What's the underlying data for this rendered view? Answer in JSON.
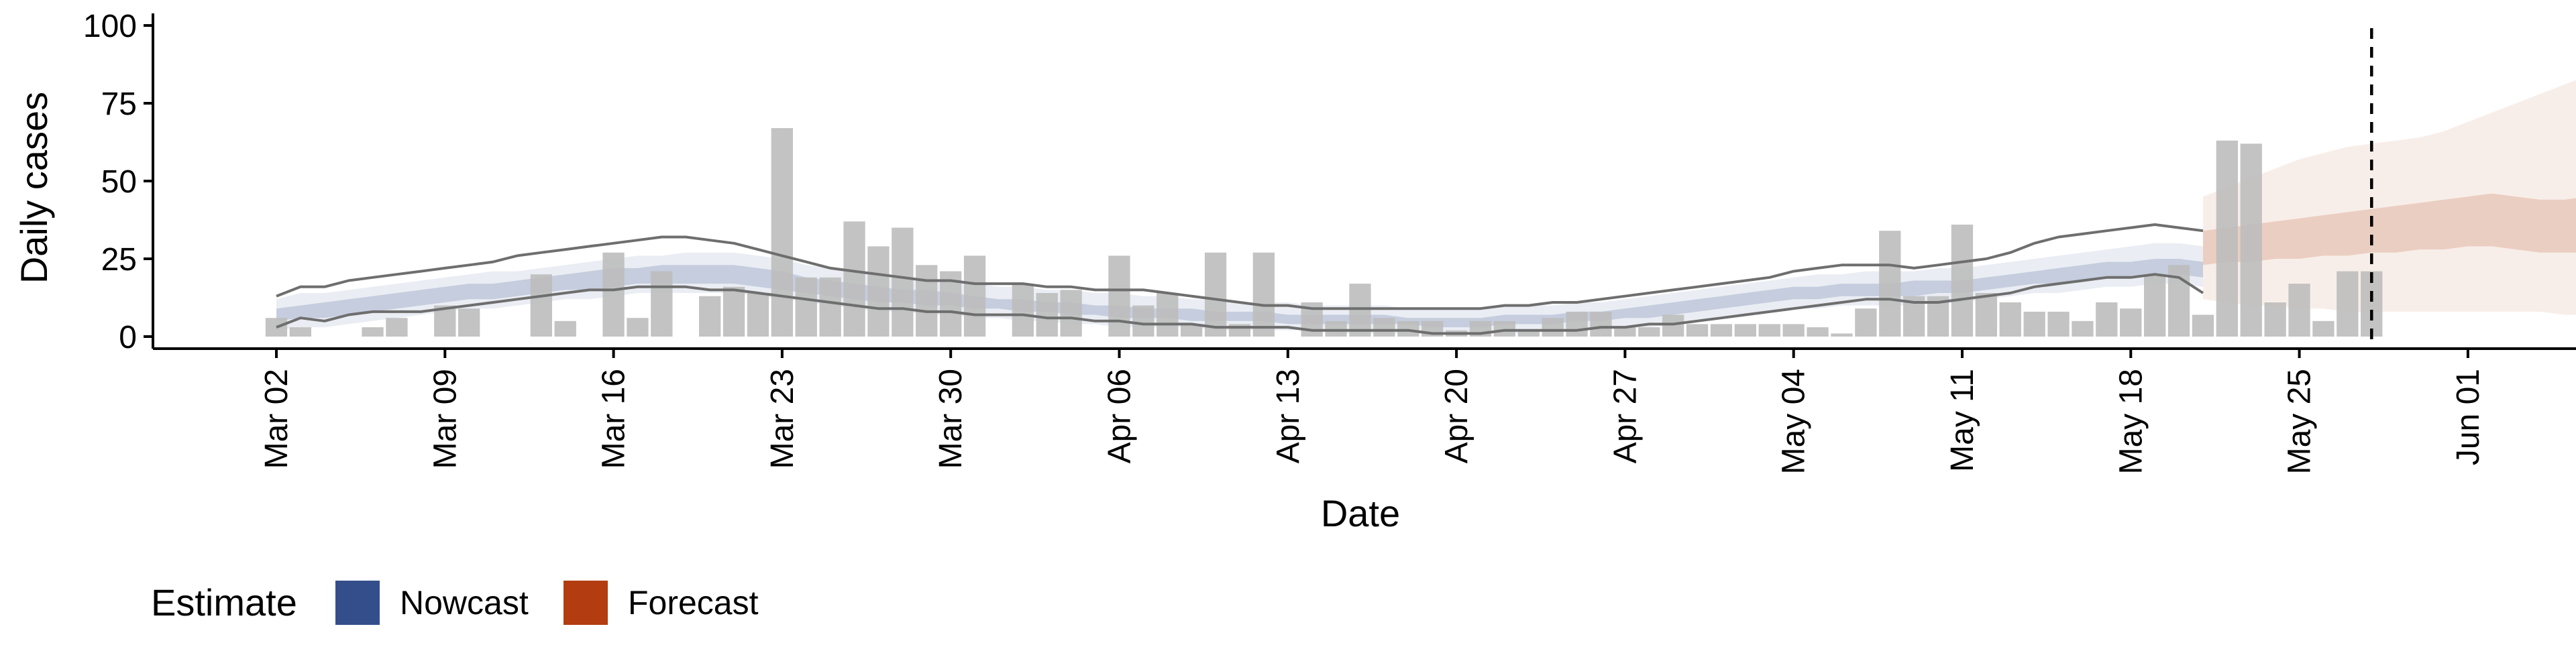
{
  "chart_data": {
    "type": "bar",
    "xlabel": "Date",
    "ylabel": "Daily cases",
    "ylim": [
      0,
      100
    ],
    "yticks": [
      0,
      25,
      50,
      75,
      100
    ],
    "xticks": [
      "Mar 02",
      "Mar 09",
      "Mar 16",
      "Mar 23",
      "Mar 30",
      "Apr 06",
      "Apr 13",
      "Apr 20",
      "Apr 27",
      "May 04",
      "May 11",
      "May 18",
      "May 25",
      "Jun 01"
    ],
    "grid": false,
    "reference_line_date": "May 28",
    "legend": {
      "position": "bottom-left",
      "title": "Estimate",
      "entries": [
        {
          "label": "Nowcast",
          "color": "#344e8c"
        },
        {
          "label": "Forecast",
          "color": "#b33d10"
        }
      ]
    },
    "colors": {
      "bars": "#bdbdbd",
      "nowcast": "#344e8c",
      "forecast": "#b33d10",
      "bound_lines": "#6e6e6e"
    },
    "dates": [
      "Mar 02",
      "Mar 03",
      "Mar 04",
      "Mar 05",
      "Mar 06",
      "Mar 07",
      "Mar 08",
      "Mar 09",
      "Mar 10",
      "Mar 11",
      "Mar 12",
      "Mar 13",
      "Mar 14",
      "Mar 15",
      "Mar 16",
      "Mar 17",
      "Mar 18",
      "Mar 19",
      "Mar 20",
      "Mar 21",
      "Mar 22",
      "Mar 23",
      "Mar 24",
      "Mar 25",
      "Mar 26",
      "Mar 27",
      "Mar 28",
      "Mar 29",
      "Mar 30",
      "Mar 31",
      "Apr 01",
      "Apr 02",
      "Apr 03",
      "Apr 04",
      "Apr 05",
      "Apr 06",
      "Apr 07",
      "Apr 08",
      "Apr 09",
      "Apr 10",
      "Apr 11",
      "Apr 12",
      "Apr 13",
      "Apr 14",
      "Apr 15",
      "Apr 16",
      "Apr 17",
      "Apr 18",
      "Apr 19",
      "Apr 20",
      "Apr 21",
      "Apr 22",
      "Apr 23",
      "Apr 24",
      "Apr 25",
      "Apr 26",
      "Apr 27",
      "Apr 28",
      "Apr 29",
      "Apr 30",
      "May 01",
      "May 02",
      "May 03",
      "May 04",
      "May 05",
      "May 06",
      "May 07",
      "May 08",
      "May 09",
      "May 10",
      "May 11",
      "May 12",
      "May 13",
      "May 14",
      "May 15",
      "May 16",
      "May 17",
      "May 18",
      "May 19",
      "May 20",
      "May 21",
      "May 22",
      "May 23",
      "May 24",
      "May 25",
      "May 26",
      "May 27",
      "May 28",
      "May 29",
      "May 30",
      "May 31",
      "Jun 01",
      "Jun 02"
    ],
    "daily_cases": [
      6,
      3,
      0,
      0,
      3,
      6,
      0,
      10,
      9,
      0,
      0,
      20,
      5,
      0,
      27,
      6,
      21,
      0,
      13,
      16,
      14,
      67,
      19,
      19,
      37,
      29,
      35,
      23,
      21,
      26,
      0,
      17,
      14,
      15,
      0,
      26,
      10,
      14,
      4,
      27,
      4,
      27,
      0,
      11,
      5,
      17,
      6,
      5,
      5,
      2,
      5,
      5,
      2,
      6,
      8,
      8,
      3,
      3,
      7,
      4,
      4,
      4,
      4,
      4,
      3,
      1,
      9,
      34,
      13,
      13,
      36,
      14,
      11,
      8,
      8,
      5,
      11,
      9,
      20,
      23,
      7,
      63,
      62,
      11,
      17,
      5,
      21,
      21
    ],
    "nowcast": {
      "start": "Mar 02",
      "outer_upper": [
        12,
        14,
        14,
        15,
        16,
        17,
        18,
        19,
        20,
        21,
        21,
        22,
        23,
        24,
        25,
        26,
        26,
        27,
        27,
        27,
        26,
        25,
        23,
        22,
        21,
        20,
        19,
        19,
        18,
        17,
        16,
        16,
        15,
        15,
        14,
        14,
        13,
        13,
        12,
        12,
        11,
        11,
        11,
        10,
        10,
        10,
        10,
        9,
        9,
        9,
        9,
        10,
        10,
        10,
        11,
        11,
        12,
        13,
        14,
        15,
        16,
        17,
        18,
        19,
        20,
        20,
        21,
        21,
        21,
        22,
        22,
        23,
        24,
        25,
        26,
        27,
        28,
        29,
        30,
        30,
        29
      ],
      "mid_upper": [
        9,
        10,
        11,
        12,
        13,
        14,
        15,
        16,
        17,
        17,
        18,
        19,
        20,
        21,
        22,
        22,
        23,
        23,
        23,
        23,
        22,
        21,
        19,
        18,
        17,
        16,
        15,
        15,
        14,
        13,
        12,
        12,
        11,
        11,
        10,
        10,
        9,
        9,
        9,
        8,
        8,
        8,
        7,
        7,
        7,
        7,
        7,
        6,
        6,
        6,
        6,
        7,
        7,
        7,
        8,
        8,
        9,
        10,
        11,
        12,
        13,
        14,
        15,
        16,
        16,
        17,
        17,
        17,
        18,
        18,
        18,
        19,
        20,
        21,
        22,
        23,
        24,
        24,
        25,
        25,
        24
      ],
      "mid_lower": [
        5,
        6,
        6,
        7,
        8,
        9,
        10,
        11,
        12,
        12,
        13,
        14,
        15,
        15,
        16,
        17,
        17,
        17,
        17,
        17,
        16,
        15,
        14,
        13,
        12,
        11,
        11,
        10,
        10,
        9,
        9,
        8,
        8,
        7,
        7,
        6,
        6,
        6,
        5,
        5,
        5,
        5,
        4,
        4,
        4,
        4,
        4,
        4,
        3,
        3,
        3,
        4,
        4,
        4,
        5,
        5,
        6,
        6,
        7,
        8,
        9,
        10,
        11,
        12,
        12,
        13,
        13,
        13,
        13,
        14,
        14,
        15,
        16,
        17,
        17,
        18,
        19,
        19,
        20,
        20,
        19
      ],
      "outer_lower": [
        2,
        3,
        3,
        4,
        5,
        6,
        7,
        8,
        9,
        9,
        10,
        11,
        12,
        12,
        13,
        14,
        14,
        14,
        14,
        14,
        13,
        12,
        11,
        10,
        9,
        8,
        8,
        7,
        7,
        6,
        6,
        5,
        5,
        4,
        4,
        3,
        3,
        3,
        3,
        2,
        2,
        2,
        2,
        2,
        1,
        1,
        1,
        1,
        1,
        1,
        1,
        1,
        1,
        2,
        2,
        2,
        3,
        3,
        4,
        5,
        6,
        7,
        8,
        9,
        9,
        10,
        10,
        10,
        10,
        11,
        11,
        12,
        13,
        14,
        14,
        15,
        16,
        16,
        17,
        17,
        16
      ]
    },
    "forecast": {
      "start": "May 21",
      "outer_upper": [
        45,
        48,
        51,
        54,
        57,
        59,
        61,
        62,
        63,
        64,
        66,
        69,
        72,
        75,
        78,
        81,
        84,
        87,
        90,
        93,
        96
      ],
      "mid_upper": [
        34,
        35,
        36,
        37,
        38,
        39,
        40,
        41,
        42,
        43,
        44,
        45,
        46,
        45,
        44,
        44,
        45,
        46,
        47,
        46,
        45
      ],
      "mid_lower": [
        23,
        24,
        24,
        25,
        25,
        26,
        26,
        27,
        27,
        28,
        28,
        29,
        29,
        28,
        27,
        27,
        27,
        27,
        28,
        27,
        26
      ],
      "outer_lower": [
        12,
        11,
        10,
        10,
        9,
        9,
        8,
        8,
        8,
        8,
        8,
        8,
        8,
        8,
        8,
        7,
        7,
        6,
        6,
        6,
        5
      ]
    },
    "upper_line": {
      "start": "Mar 02",
      "values": [
        13,
        16,
        16,
        18,
        19,
        20,
        21,
        22,
        23,
        24,
        26,
        27,
        28,
        29,
        30,
        31,
        32,
        32,
        31,
        30,
        28,
        26,
        24,
        22,
        21,
        20,
        19,
        18,
        18,
        17,
        17,
        17,
        16,
        16,
        15,
        15,
        15,
        14,
        13,
        12,
        11,
        10,
        10,
        9,
        9,
        9,
        9,
        9,
        9,
        9,
        9,
        10,
        10,
        11,
        11,
        12,
        13,
        14,
        15,
        16,
        17,
        18,
        19,
        21,
        22,
        23,
        23,
        23,
        22,
        23,
        24,
        25,
        27,
        30,
        32,
        33,
        34,
        35,
        36,
        35,
        34
      ]
    },
    "lower_line": {
      "start": "Mar 02",
      "values": [
        3,
        6,
        5,
        7,
        8,
        8,
        8,
        9,
        10,
        11,
        12,
        13,
        14,
        15,
        15,
        16,
        16,
        16,
        15,
        15,
        14,
        13,
        12,
        11,
        10,
        9,
        9,
        8,
        8,
        7,
        7,
        7,
        6,
        6,
        5,
        5,
        4,
        4,
        4,
        3,
        3,
        3,
        3,
        2,
        2,
        2,
        2,
        2,
        1,
        1,
        1,
        2,
        2,
        2,
        2,
        3,
        3,
        4,
        4,
        5,
        6,
        7,
        8,
        9,
        10,
        11,
        12,
        12,
        11,
        11,
        12,
        13,
        14,
        16,
        17,
        18,
        19,
        19,
        20,
        19,
        14
      ]
    }
  }
}
